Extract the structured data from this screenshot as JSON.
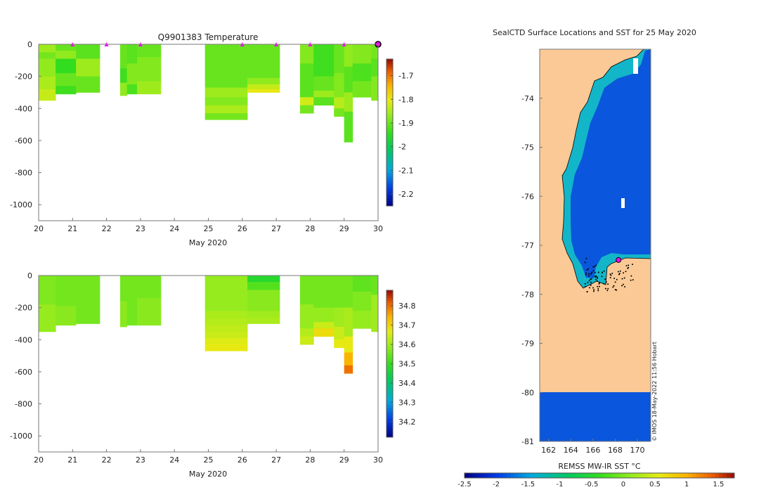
{
  "chart_data": [
    {
      "type": "heatmap",
      "title": "Q9901383  Temperature",
      "xlabel": "May 2020",
      "ylabel": "",
      "xlim": [
        20,
        30
      ],
      "ylim": [
        -1100,
        0
      ],
      "xticks": [
        "20",
        "21",
        "22",
        "23",
        "24",
        "25",
        "26",
        "27",
        "28",
        "29",
        "30"
      ],
      "yticks": [
        "0",
        "-200",
        "-400",
        "-600",
        "-800",
        "-1000"
      ],
      "profile_days": [
        21,
        22,
        23,
        26,
        27,
        28,
        29
      ],
      "latest_profile_day": 30,
      "colorbar": {
        "range": [
          -2.25,
          -1.63
        ],
        "ticks": [
          "-1.7",
          "-1.8",
          "-1.9",
          "-2",
          "-2.1",
          "-2.2"
        ]
      },
      "columns": [
        {
          "x0": 20.0,
          "x1": 20.5,
          "maxdepth": 350,
          "layers": [
            [
              0,
              50,
              -1.86
            ],
            [
              50,
              90,
              -1.89
            ],
            [
              90,
              200,
              -1.87
            ],
            [
              200,
              280,
              -1.85
            ],
            [
              280,
              350,
              -1.83
            ]
          ]
        },
        {
          "x0": 20.5,
          "x1": 21.1,
          "maxdepth": 310,
          "layers": [
            [
              0,
              40,
              -1.9
            ],
            [
              40,
              90,
              -1.87
            ],
            [
              90,
              180,
              -1.94
            ],
            [
              180,
              260,
              -1.9
            ],
            [
              260,
              310,
              -1.93
            ]
          ]
        },
        {
          "x0": 21.1,
          "x1": 21.8,
          "maxdepth": 300,
          "layers": [
            [
              0,
              90,
              -1.91
            ],
            [
              90,
              200,
              -1.86
            ],
            [
              200,
              300,
              -1.9
            ]
          ]
        },
        {
          "x0": 22.4,
          "x1": 22.6,
          "maxdepth": 320,
          "layers": [
            [
              0,
              150,
              -1.9
            ],
            [
              150,
              240,
              -1.93
            ],
            [
              240,
              320,
              -1.87
            ]
          ]
        },
        {
          "x0": 22.6,
          "x1": 22.9,
          "maxdepth": 310,
          "layers": [
            [
              0,
              120,
              -1.91
            ],
            [
              120,
              250,
              -1.88
            ],
            [
              250,
              310,
              -1.92
            ]
          ]
        },
        {
          "x0": 22.9,
          "x1": 23.6,
          "maxdepth": 310,
          "layers": [
            [
              0,
              80,
              -1.9
            ],
            [
              80,
              230,
              -1.88
            ],
            [
              230,
              310,
              -1.86
            ]
          ]
        },
        {
          "x0": 24.9,
          "x1": 26.15,
          "maxdepth": 470,
          "layers": [
            [
              0,
              270,
              -1.9
            ],
            [
              270,
              330,
              -1.86
            ],
            [
              330,
              380,
              -1.88
            ],
            [
              380,
              430,
              -1.85
            ],
            [
              430,
              470,
              -1.89
            ]
          ]
        },
        {
          "x0": 26.15,
          "x1": 27.1,
          "maxdepth": 300,
          "layers": [
            [
              0,
              210,
              -1.9
            ],
            [
              210,
              250,
              -1.87
            ],
            [
              250,
              280,
              -1.83
            ],
            [
              280,
              300,
              -1.8
            ]
          ]
        },
        {
          "x0": 27.7,
          "x1": 28.1,
          "maxdepth": 430,
          "layers": [
            [
              0,
              120,
              -1.88
            ],
            [
              120,
              330,
              -1.91
            ],
            [
              330,
              380,
              -1.82
            ],
            [
              380,
              430,
              -1.89
            ]
          ]
        },
        {
          "x0": 28.1,
          "x1": 28.7,
          "maxdepth": 380,
          "layers": [
            [
              0,
              200,
              -1.93
            ],
            [
              200,
              290,
              -1.9
            ],
            [
              290,
              330,
              -1.86
            ],
            [
              330,
              380,
              -1.91
            ]
          ]
        },
        {
          "x0": 28.7,
          "x1": 29.0,
          "maxdepth": 450,
          "layers": [
            [
              0,
              180,
              -1.9
            ],
            [
              180,
              330,
              -1.88
            ],
            [
              330,
              400,
              -1.84
            ],
            [
              400,
              450,
              -1.89
            ]
          ]
        },
        {
          "x0": 29.0,
          "x1": 29.25,
          "maxdepth": 610,
          "layers": [
            [
              0,
              140,
              -1.87
            ],
            [
              140,
              300,
              -1.91
            ],
            [
              300,
              420,
              -1.86
            ],
            [
              420,
              610,
              -1.91
            ]
          ]
        },
        {
          "x0": 29.25,
          "x1": 29.8,
          "maxdepth": 330,
          "layers": [
            [
              0,
              120,
              -1.88
            ],
            [
              120,
              230,
              -1.92
            ],
            [
              230,
              330,
              -1.89
            ]
          ]
        },
        {
          "x0": 29.8,
          "x1": 30.05,
          "maxdepth": 350,
          "layers": [
            [
              0,
              90,
              -1.89
            ],
            [
              90,
              200,
              -1.91
            ],
            [
              200,
              350,
              -1.88
            ]
          ]
        }
      ]
    },
    {
      "type": "heatmap",
      "title": "",
      "xlabel": "May 2020",
      "ylabel": "",
      "xlim": [
        20,
        30
      ],
      "ylim": [
        -1100,
        0
      ],
      "xticks": [
        "20",
        "21",
        "22",
        "23",
        "24",
        "25",
        "26",
        "27",
        "28",
        "29",
        "30"
      ],
      "yticks": [
        "0",
        "-200",
        "-400",
        "-600",
        "-800",
        "-1000"
      ],
      "colorbar": {
        "range": [
          34.12,
          34.88
        ],
        "ticks": [
          "34.8",
          "34.7",
          "34.6",
          "34.5",
          "34.4",
          "34.3",
          "34.2"
        ]
      },
      "columns": [
        {
          "x0": 20.0,
          "x1": 20.5,
          "maxdepth": 350,
          "layers": [
            [
              0,
              180,
              34.57
            ],
            [
              180,
              350,
              34.59
            ]
          ]
        },
        {
          "x0": 20.5,
          "x1": 21.1,
          "maxdepth": 310,
          "layers": [
            [
              0,
              190,
              34.56
            ],
            [
              190,
              310,
              34.58
            ]
          ]
        },
        {
          "x0": 21.1,
          "x1": 21.8,
          "maxdepth": 300,
          "layers": [
            [
              0,
              300,
              34.56
            ]
          ]
        },
        {
          "x0": 22.4,
          "x1": 22.6,
          "maxdepth": 320,
          "layers": [
            [
              0,
              160,
              34.56
            ],
            [
              160,
              320,
              34.58
            ]
          ]
        },
        {
          "x0": 22.6,
          "x1": 22.9,
          "maxdepth": 310,
          "layers": [
            [
              0,
              310,
              34.56
            ]
          ]
        },
        {
          "x0": 22.9,
          "x1": 23.6,
          "maxdepth": 310,
          "layers": [
            [
              0,
              140,
              34.56
            ],
            [
              140,
              310,
              34.58
            ]
          ]
        },
        {
          "x0": 24.9,
          "x1": 26.15,
          "maxdepth": 470,
          "layers": [
            [
              0,
              220,
              34.59
            ],
            [
              220,
              270,
              34.61
            ],
            [
              270,
              310,
              34.62
            ],
            [
              310,
              350,
              34.63
            ],
            [
              350,
              390,
              34.64
            ],
            [
              390,
              430,
              34.66
            ],
            [
              430,
              470,
              34.67
            ]
          ]
        },
        {
          "x0": 26.15,
          "x1": 27.1,
          "maxdepth": 300,
          "layers": [
            [
              0,
              40,
              34.48
            ],
            [
              40,
              90,
              34.53
            ],
            [
              90,
              220,
              34.58
            ],
            [
              220,
              260,
              34.6
            ],
            [
              260,
              300,
              34.61
            ]
          ]
        },
        {
          "x0": 27.7,
          "x1": 28.1,
          "maxdepth": 430,
          "layers": [
            [
              0,
              180,
              34.56
            ],
            [
              180,
              330,
              34.59
            ],
            [
              330,
              380,
              34.62
            ],
            [
              380,
              430,
              34.64
            ]
          ]
        },
        {
          "x0": 28.1,
          "x1": 28.7,
          "maxdepth": 380,
          "layers": [
            [
              0,
              200,
              34.56
            ],
            [
              200,
              290,
              34.59
            ],
            [
              290,
              330,
              34.64
            ],
            [
              330,
              380,
              34.69
            ]
          ]
        },
        {
          "x0": 28.7,
          "x1": 29.0,
          "maxdepth": 450,
          "layers": [
            [
              0,
              200,
              34.56
            ],
            [
              200,
              320,
              34.6
            ],
            [
              320,
              400,
              34.64
            ],
            [
              400,
              450,
              34.67
            ]
          ]
        },
        {
          "x0": 29.0,
          "x1": 29.25,
          "maxdepth": 610,
          "layers": [
            [
              0,
              200,
              34.56
            ],
            [
              200,
              380,
              34.61
            ],
            [
              380,
              480,
              34.67
            ],
            [
              480,
              560,
              34.74
            ],
            [
              560,
              610,
              34.8
            ]
          ]
        },
        {
          "x0": 29.25,
          "x1": 29.8,
          "maxdepth": 330,
          "layers": [
            [
              0,
              100,
              34.54
            ],
            [
              100,
              220,
              34.57
            ],
            [
              220,
              330,
              34.59
            ]
          ]
        },
        {
          "x0": 29.8,
          "x1": 30.05,
          "maxdepth": 350,
          "layers": [
            [
              0,
              120,
              34.55
            ],
            [
              120,
              350,
              34.6
            ]
          ]
        }
      ]
    },
    {
      "type": "heatmap",
      "title": "SealCTD Surface Locations and SST for 25 May 2020",
      "xlabel": "REMSS MW-IR SST °C",
      "xlim": [
        161.2,
        171.2
      ],
      "ylim": [
        -81,
        -73
      ],
      "xticks": [
        "162",
        "164",
        "166",
        "168",
        "170"
      ],
      "yticks": [
        "-74",
        "-75",
        "-76",
        "-77",
        "-78",
        "-79",
        "-80",
        "-81"
      ],
      "colorbar": {
        "range": [
          -2.5,
          1.75
        ],
        "ticks": [
          "-2.5",
          "-2",
          "-1.5",
          "-1",
          "-0.5",
          "0",
          "0.5",
          "1",
          "1.5"
        ]
      },
      "sst_ocean_value": -1.8,
      "sst_coastal_value": -1.0,
      "latest_position": [
        168.3,
        -77.3
      ],
      "credit": "© IMOS 18-May-2022 11:56 Hobart"
    }
  ]
}
